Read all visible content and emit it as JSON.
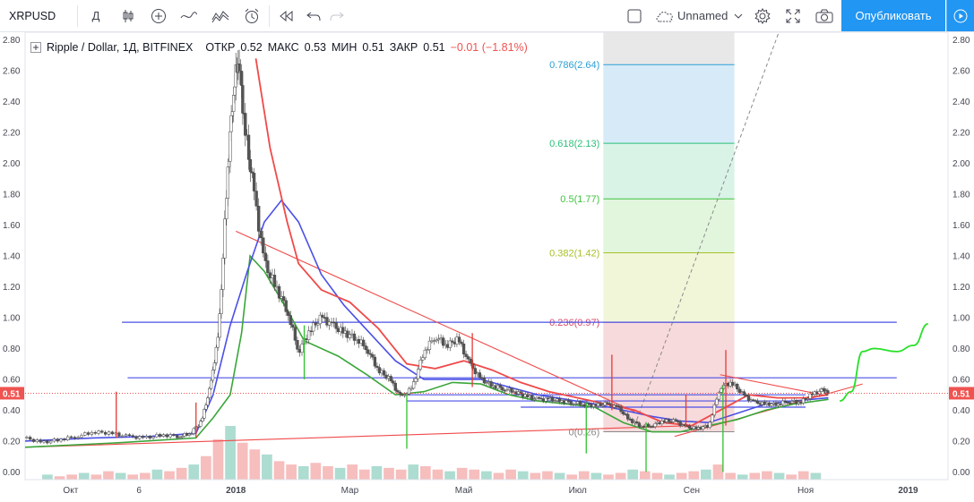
{
  "toolbar": {
    "symbol": "XRPUSD",
    "interval": "Д",
    "layout_name": "Unnamed",
    "publish_label": "Опубликовать"
  },
  "legend": {
    "title": "Ripple / Dollar, 1Д, BITFINEX",
    "open_label": "ОТКР",
    "open": "0.52",
    "high_label": "МАКС",
    "high": "0.53",
    "low_label": "МИН",
    "low": "0.51",
    "close_label": "ЗАКР",
    "close": "0.51",
    "change": "−0.01 (−1.81%)"
  },
  "colors": {
    "up": "#26a69a",
    "down": "#ef5350",
    "ma_red": "#f04a4a",
    "ma_blue": "#4b50e6",
    "ma_green": "#3aa63a",
    "trend": "#f04a4a",
    "hline": "#4b50e6",
    "accent": "#2196f3"
  },
  "chart_data": {
    "type": "candlestick",
    "title": "Ripple / Dollar, 1Д, BITFINEX",
    "y_ticks": [
      "2.80",
      "2.60",
      "2.40",
      "2.20",
      "2.00",
      "1.80",
      "1.60",
      "1.40",
      "1.20",
      "1.00",
      "0.80",
      "0.60",
      "0.40",
      "0.20",
      "0.00"
    ],
    "ylim": [
      -0.05,
      2.85
    ],
    "x_ticks": [
      {
        "label": "Окт",
        "t": 0.1
      },
      {
        "label": "6",
        "t": 1.3
      },
      {
        "label": "2018",
        "t": 3.0
      },
      {
        "label": "Мар",
        "t": 5.0
      },
      {
        "label": "Май",
        "t": 7.0
      },
      {
        "label": "Июл",
        "t": 9.0
      },
      {
        "label": "Сен",
        "t": 11.0
      },
      {
        "label": "Ноя",
        "t": 13.0
      },
      {
        "label": "2019",
        "t": 14.8
      }
    ],
    "xlim": [
      -0.7,
      15.5
    ],
    "last_price": "0.51",
    "price_series": [
      [
        -0.7,
        0.22
      ],
      [
        -0.4,
        0.19
      ],
      [
        -0.1,
        0.21
      ],
      [
        0.2,
        0.23
      ],
      [
        0.5,
        0.26
      ],
      [
        0.8,
        0.25
      ],
      [
        1.1,
        0.23
      ],
      [
        1.4,
        0.22
      ],
      [
        1.7,
        0.24
      ],
      [
        2.0,
        0.23
      ],
      [
        2.2,
        0.25
      ],
      [
        2.4,
        0.33
      ],
      [
        2.55,
        0.55
      ],
      [
        2.7,
        0.9
      ],
      [
        2.85,
        1.9
      ],
      [
        2.95,
        2.45
      ],
      [
        3.05,
        2.7
      ],
      [
        3.15,
        2.25
      ],
      [
        3.3,
        1.85
      ],
      [
        3.5,
        1.35
      ],
      [
        3.7,
        1.2
      ],
      [
        3.9,
        1.05
      ],
      [
        4.1,
        0.78
      ],
      [
        4.3,
        0.92
      ],
      [
        4.5,
        1.0
      ],
      [
        4.7,
        0.95
      ],
      [
        4.9,
        0.9
      ],
      [
        5.1,
        0.87
      ],
      [
        5.3,
        0.8
      ],
      [
        5.5,
        0.66
      ],
      [
        5.7,
        0.6
      ],
      [
        5.9,
        0.48
      ],
      [
        6.1,
        0.55
      ],
      [
        6.3,
        0.78
      ],
      [
        6.5,
        0.88
      ],
      [
        6.7,
        0.82
      ],
      [
        6.9,
        0.86
      ],
      [
        7.1,
        0.7
      ],
      [
        7.3,
        0.6
      ],
      [
        7.5,
        0.56
      ],
      [
        7.7,
        0.54
      ],
      [
        7.9,
        0.52
      ],
      [
        8.1,
        0.49
      ],
      [
        8.3,
        0.47
      ],
      [
        8.5,
        0.47
      ],
      [
        8.7,
        0.46
      ],
      [
        8.9,
        0.45
      ],
      [
        9.1,
        0.44
      ],
      [
        9.3,
        0.43
      ],
      [
        9.5,
        0.44
      ],
      [
        9.7,
        0.42
      ],
      [
        9.9,
        0.34
      ],
      [
        10.1,
        0.3
      ],
      [
        10.3,
        0.3
      ],
      [
        10.5,
        0.33
      ],
      [
        10.7,
        0.33
      ],
      [
        10.9,
        0.29
      ],
      [
        11.1,
        0.28
      ],
      [
        11.3,
        0.3
      ],
      [
        11.5,
        0.55
      ],
      [
        11.7,
        0.58
      ],
      [
        11.9,
        0.5
      ],
      [
        12.1,
        0.45
      ],
      [
        12.3,
        0.44
      ],
      [
        12.5,
        0.44
      ],
      [
        12.7,
        0.46
      ],
      [
        12.9,
        0.45
      ],
      [
        13.1,
        0.5
      ],
      [
        13.3,
        0.53
      ],
      [
        13.4,
        0.51
      ]
    ],
    "spikes": [
      {
        "t": 0.9,
        "low": 0.22,
        "high": 0.52,
        "color": "down"
      },
      {
        "t": 2.3,
        "low": 0.22,
        "high": 0.45,
        "color": "down"
      },
      {
        "t": 4.2,
        "low": 0.6,
        "high": 0.95,
        "color": "up"
      },
      {
        "t": 6.0,
        "low": 0.15,
        "high": 0.5,
        "color": "up"
      },
      {
        "t": 7.15,
        "low": 0.55,
        "high": 0.9,
        "color": "down"
      },
      {
        "t": 9.15,
        "low": 0.12,
        "high": 0.45,
        "color": "up"
      },
      {
        "t": 9.6,
        "low": 0.4,
        "high": 0.76,
        "color": "down"
      },
      {
        "t": 10.2,
        "low": 0.0,
        "high": 0.32,
        "color": "up"
      },
      {
        "t": 10.9,
        "low": 0.29,
        "high": 0.5,
        "color": "down"
      },
      {
        "t": 11.55,
        "low": 0.0,
        "high": 0.56,
        "color": "up"
      },
      {
        "t": 11.6,
        "low": 0.3,
        "high": 0.79,
        "color": "down"
      }
    ],
    "ma_red": [
      [
        3.35,
        2.68
      ],
      [
        3.6,
        2.1
      ],
      [
        3.9,
        1.62
      ],
      [
        4.1,
        1.35
      ],
      [
        4.5,
        1.18
      ],
      [
        5.0,
        1.1
      ],
      [
        5.5,
        0.93
      ],
      [
        6.0,
        0.7
      ],
      [
        6.5,
        0.67
      ],
      [
        7.0,
        0.72
      ],
      [
        7.5,
        0.66
      ],
      [
        8.0,
        0.58
      ],
      [
        8.5,
        0.52
      ],
      [
        9.0,
        0.48
      ],
      [
        9.5,
        0.44
      ],
      [
        10.0,
        0.4
      ],
      [
        10.5,
        0.32
      ],
      [
        11.0,
        0.3
      ],
      [
        11.5,
        0.4
      ],
      [
        12.0,
        0.5
      ],
      [
        12.5,
        0.48
      ],
      [
        13.0,
        0.48
      ],
      [
        13.4,
        0.5
      ]
    ],
    "ma_blue": [
      [
        -0.7,
        0.2
      ],
      [
        0.5,
        0.22
      ],
      [
        1.5,
        0.23
      ],
      [
        2.3,
        0.25
      ],
      [
        2.6,
        0.5
      ],
      [
        2.9,
        0.95
      ],
      [
        3.2,
        1.3
      ],
      [
        3.5,
        1.62
      ],
      [
        3.8,
        1.76
      ],
      [
        4.1,
        1.62
      ],
      [
        4.5,
        1.28
      ],
      [
        4.9,
        1.08
      ],
      [
        5.3,
        0.92
      ],
      [
        5.8,
        0.72
      ],
      [
        6.3,
        0.6
      ],
      [
        6.8,
        0.6
      ],
      [
        7.3,
        0.6
      ],
      [
        7.8,
        0.55
      ],
      [
        8.3,
        0.5
      ],
      [
        8.8,
        0.47
      ],
      [
        9.3,
        0.44
      ],
      [
        9.8,
        0.4
      ],
      [
        10.3,
        0.36
      ],
      [
        10.8,
        0.33
      ],
      [
        11.3,
        0.32
      ],
      [
        11.8,
        0.38
      ],
      [
        12.3,
        0.44
      ],
      [
        12.8,
        0.46
      ],
      [
        13.4,
        0.48
      ]
    ],
    "ma_green": [
      [
        -0.7,
        0.16
      ],
      [
        1.0,
        0.19
      ],
      [
        2.3,
        0.22
      ],
      [
        2.6,
        0.35
      ],
      [
        2.9,
        0.5
      ],
      [
        3.1,
        0.9
      ],
      [
        3.25,
        1.4
      ],
      [
        3.5,
        1.3
      ],
      [
        3.9,
        1.05
      ],
      [
        4.2,
        0.85
      ],
      [
        4.8,
        0.75
      ],
      [
        5.3,
        0.63
      ],
      [
        5.8,
        0.5
      ],
      [
        6.3,
        0.52
      ],
      [
        6.8,
        0.58
      ],
      [
        7.3,
        0.57
      ],
      [
        7.8,
        0.5
      ],
      [
        8.3,
        0.46
      ],
      [
        8.8,
        0.44
      ],
      [
        9.3,
        0.42
      ],
      [
        9.8,
        0.32
      ],
      [
        10.3,
        0.26
      ],
      [
        10.8,
        0.26
      ],
      [
        11.3,
        0.3
      ],
      [
        11.8,
        0.34
      ],
      [
        12.3,
        0.4
      ],
      [
        12.8,
        0.44
      ],
      [
        13.4,
        0.47
      ]
    ],
    "projection": [
      [
        13.6,
        0.46
      ],
      [
        13.8,
        0.52
      ],
      [
        14.0,
        0.78
      ],
      [
        14.2,
        0.8
      ],
      [
        14.6,
        0.78
      ],
      [
        14.9,
        0.82
      ],
      [
        15.15,
        0.96
      ]
    ],
    "trend_lines": [
      {
        "from": [
          3.0,
          1.56
        ],
        "to": [
          10.0,
          0.39
        ]
      },
      {
        "from": [
          -0.7,
          0.16
        ],
        "to": [
          11.0,
          0.3
        ]
      },
      {
        "from": [
          10.7,
          0.23
        ],
        "to": [
          14.0,
          0.57
        ]
      },
      {
        "from": [
          11.5,
          0.63
        ],
        "to": [
          13.3,
          0.5
        ]
      }
    ],
    "h_lines": [
      {
        "y": 0.97,
        "from": 1.0,
        "to": 14.6
      },
      {
        "y": 0.61,
        "from": 1.1,
        "to": 14.6
      },
      {
        "y": 0.5,
        "from": 6.0,
        "to": 13.0
      },
      {
        "y": 0.46,
        "from": 6.0,
        "to": 13.0
      },
      {
        "y": 0.42,
        "from": 8.0,
        "to": 13.0
      }
    ],
    "fibonacci": {
      "from_t": 9.45,
      "to_t": 11.75,
      "levels": [
        {
          "label": "0.786(2.64)",
          "y": 2.64,
          "color": "#2a9fd6",
          "fill": "#cfe8f6"
        },
        {
          "label": "0.618(2.13)",
          "y": 2.13,
          "color": "#2cbf7a",
          "fill": "#d2f1e3"
        },
        {
          "label": "0.5(1.77)",
          "y": 1.77,
          "color": "#3fc43f",
          "fill": "#dcf4d6"
        },
        {
          "label": "0.382(1.42)",
          "y": 1.42,
          "color": "#a7c22a",
          "fill": "#eef4d2"
        },
        {
          "label": "0.236(0.97)",
          "y": 0.97,
          "color": "#d94a6a",
          "fill": "#f6d3d6"
        },
        {
          "label": "0(0.26)",
          "y": 0.26,
          "color": "#8a8a8a",
          "fill": null
        }
      ],
      "top_fill": "#e6e6e6"
    },
    "dashed_line": {
      "from": [
        10.0,
        0.3
      ],
      "to": [
        12.6,
        2.92
      ]
    },
    "volume": [
      3,
      2,
      3,
      4,
      3,
      5,
      4,
      3,
      4,
      6,
      5,
      7,
      9,
      14,
      24,
      32,
      22,
      18,
      15,
      11,
      9,
      8,
      10,
      8,
      7,
      9,
      6,
      8,
      7,
      6,
      9,
      8,
      6,
      5,
      7,
      6,
      5,
      4,
      6,
      5,
      4,
      5,
      4,
      3,
      5,
      4,
      3,
      4,
      6,
      5,
      4,
      3,
      4,
      5,
      6,
      9,
      4,
      3,
      4,
      5,
      4,
      3,
      5,
      4
    ]
  }
}
